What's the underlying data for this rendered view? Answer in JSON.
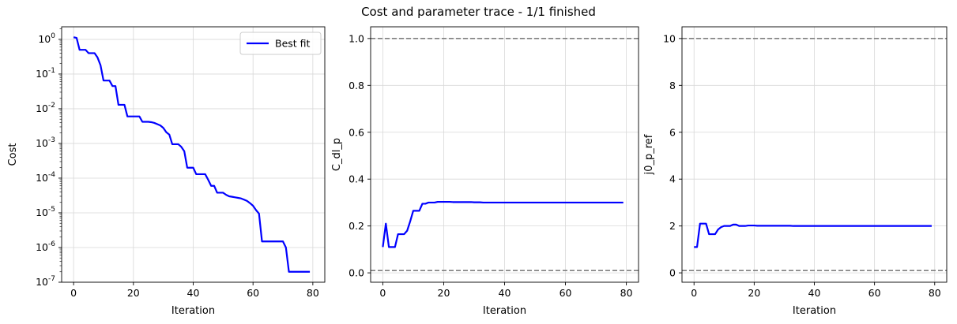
{
  "figure": {
    "title": "Cost and parameter trace - 1/1 finished"
  },
  "chart_data": [
    {
      "type": "line",
      "xlabel": "Iteration",
      "ylabel": "Cost",
      "yscale": "log",
      "xlim": [
        -4,
        84
      ],
      "ylim": [
        1e-07,
        2.3
      ],
      "xticks": [
        0,
        20,
        40,
        60,
        80
      ],
      "yticks": [
        1e-07,
        1e-06,
        1e-05,
        0.0001,
        0.001,
        0.01,
        0.1,
        1
      ],
      "ytick_labels": [
        [
          "10",
          "-7"
        ],
        [
          "10",
          "-6"
        ],
        [
          "10",
          "-5"
        ],
        [
          "10",
          "-4"
        ],
        [
          "10",
          "-3"
        ],
        [
          "10",
          "-2"
        ],
        [
          "10",
          "-1"
        ],
        [
          "10",
          "0"
        ]
      ],
      "grid": true,
      "legend": {
        "position": "upper-right",
        "entries": [
          "Best fit"
        ]
      },
      "series": [
        {
          "name": "Best fit",
          "color": "#0000ff",
          "x": [
            0,
            1,
            2,
            3,
            4,
            5,
            6,
            7,
            8,
            9,
            10,
            11,
            12,
            13,
            14,
            15,
            16,
            17,
            18,
            19,
            20,
            21,
            22,
            23,
            24,
            25,
            26,
            27,
            28,
            29,
            30,
            31,
            32,
            33,
            34,
            35,
            36,
            37,
            38,
            39,
            40,
            41,
            42,
            43,
            44,
            45,
            46,
            47,
            48,
            49,
            50,
            51,
            52,
            53,
            54,
            55,
            56,
            57,
            58,
            59,
            60,
            61,
            62,
            63,
            64,
            65,
            66,
            67,
            68,
            69,
            70,
            71,
            72,
            73,
            74,
            75,
            76,
            77,
            78,
            79
          ],
          "y": [
            1.15,
            1.1,
            0.5,
            0.5,
            0.5,
            0.4,
            0.4,
            0.4,
            0.3,
            0.18,
            0.065,
            0.065,
            0.065,
            0.045,
            0.045,
            0.013,
            0.013,
            0.013,
            0.006,
            0.006,
            0.006,
            0.006,
            0.006,
            0.0042,
            0.0042,
            0.0042,
            0.0041,
            0.0039,
            0.0036,
            0.0033,
            0.0028,
            0.0021,
            0.0018,
            0.00095,
            0.00095,
            0.00095,
            0.0008,
            0.0006,
            0.0002,
            0.0002,
            0.0002,
            0.00013,
            0.00013,
            0.00013,
            0.00013,
            9e-05,
            6e-05,
            6e-05,
            3.8e-05,
            3.8e-05,
            3.8e-05,
            3.3e-05,
            3e-05,
            2.9e-05,
            2.8e-05,
            2.7e-05,
            2.6e-05,
            2.4e-05,
            2.2e-05,
            1.9e-05,
            1.6e-05,
            1.2e-05,
            9.5e-06,
            1.5e-06,
            1.5e-06,
            1.5e-06,
            1.5e-06,
            1.5e-06,
            1.5e-06,
            1.5e-06,
            1.5e-06,
            1e-06,
            2e-07,
            2e-07,
            2e-07,
            2e-07,
            2e-07,
            2e-07,
            2e-07,
            2e-07
          ]
        }
      ]
    },
    {
      "type": "line",
      "xlabel": "Iteration",
      "ylabel": "C_dl_p",
      "xlim": [
        -4,
        84
      ],
      "ylim": [
        -0.04,
        1.05
      ],
      "xticks": [
        0,
        20,
        40,
        60,
        80
      ],
      "yticks": [
        0.0,
        0.2,
        0.4,
        0.6,
        0.8,
        1.0
      ],
      "ytick_labels": [
        "0.0",
        "0.2",
        "0.4",
        "0.6",
        "0.8",
        "1.0"
      ],
      "grid": true,
      "bounds": [
        0.01,
        1.0
      ],
      "series": [
        {
          "color": "#0000ff",
          "x": [
            0,
            1,
            2,
            3,
            4,
            5,
            6,
            7,
            8,
            9,
            10,
            11,
            12,
            13,
            14,
            15,
            16,
            17,
            18,
            19,
            20,
            21,
            22,
            23,
            24,
            25,
            26,
            27,
            28,
            29,
            30,
            31,
            32,
            33,
            34,
            35,
            36,
            37,
            38,
            39,
            40,
            41,
            42,
            43,
            44,
            45,
            46,
            47,
            48,
            49,
            50,
            51,
            52,
            53,
            54,
            55,
            56,
            57,
            58,
            59,
            60,
            61,
            62,
            63,
            64,
            65,
            66,
            67,
            68,
            69,
            70,
            71,
            72,
            73,
            74,
            75,
            76,
            77,
            78,
            79
          ],
          "y": [
            0.11,
            0.21,
            0.11,
            0.11,
            0.11,
            0.165,
            0.165,
            0.165,
            0.18,
            0.22,
            0.265,
            0.265,
            0.265,
            0.295,
            0.295,
            0.3,
            0.3,
            0.3,
            0.303,
            0.303,
            0.303,
            0.303,
            0.303,
            0.302,
            0.302,
            0.302,
            0.302,
            0.302,
            0.302,
            0.302,
            0.301,
            0.301,
            0.301,
            0.3,
            0.3,
            0.3,
            0.3,
            0.3,
            0.3,
            0.3,
            0.3,
            0.3,
            0.3,
            0.3,
            0.3,
            0.3,
            0.3,
            0.3,
            0.3,
            0.3,
            0.3,
            0.3,
            0.3,
            0.3,
            0.3,
            0.3,
            0.3,
            0.3,
            0.3,
            0.3,
            0.3,
            0.3,
            0.3,
            0.3,
            0.3,
            0.3,
            0.3,
            0.3,
            0.3,
            0.3,
            0.3,
            0.3,
            0.3,
            0.3,
            0.3,
            0.3,
            0.3,
            0.3,
            0.3,
            0.3
          ]
        }
      ]
    },
    {
      "type": "line",
      "xlabel": "Iteration",
      "ylabel": "j0_p_ref",
      "xlim": [
        -4,
        84
      ],
      "ylim": [
        -0.4,
        10.5
      ],
      "xticks": [
        0,
        20,
        40,
        60,
        80
      ],
      "yticks": [
        0,
        2,
        4,
        6,
        8,
        10
      ],
      "ytick_labels": [
        "0",
        "2",
        "4",
        "6",
        "8",
        "10"
      ],
      "grid": true,
      "bounds": [
        0.1,
        10.0
      ],
      "series": [
        {
          "color": "#0000ff",
          "x": [
            0,
            1,
            2,
            3,
            4,
            5,
            6,
            7,
            8,
            9,
            10,
            11,
            12,
            13,
            14,
            15,
            16,
            17,
            18,
            19,
            20,
            21,
            22,
            23,
            24,
            25,
            26,
            27,
            28,
            29,
            30,
            31,
            32,
            33,
            34,
            35,
            36,
            37,
            38,
            39,
            40,
            41,
            42,
            43,
            44,
            45,
            46,
            47,
            48,
            49,
            50,
            51,
            52,
            53,
            54,
            55,
            56,
            57,
            58,
            59,
            60,
            61,
            62,
            63,
            64,
            65,
            66,
            67,
            68,
            69,
            70,
            71,
            72,
            73,
            74,
            75,
            76,
            77,
            78,
            79
          ],
          "y": [
            1.1,
            1.1,
            2.1,
            2.1,
            2.1,
            1.65,
            1.65,
            1.65,
            1.85,
            1.95,
            2.0,
            2.0,
            2.0,
            2.06,
            2.06,
            2.0,
            2.0,
            2.0,
            2.02,
            2.02,
            2.02,
            2.01,
            2.01,
            2.01,
            2.01,
            2.01,
            2.01,
            2.01,
            2.01,
            2.01,
            2.01,
            2.01,
            2.01,
            2.0,
            2.0,
            2.0,
            2.0,
            2.0,
            2.0,
            2.0,
            2.0,
            2.0,
            2.0,
            2.0,
            2.0,
            2.0,
            2.0,
            2.0,
            2.0,
            2.0,
            2.0,
            2.0,
            2.0,
            2.0,
            2.0,
            2.0,
            2.0,
            2.0,
            2.0,
            2.0,
            2.0,
            2.0,
            2.0,
            2.0,
            2.0,
            2.0,
            2.0,
            2.0,
            2.0,
            2.0,
            2.0,
            2.0,
            2.0,
            2.0,
            2.0,
            2.0,
            2.0,
            2.0,
            2.0,
            2.0
          ]
        }
      ]
    }
  ]
}
